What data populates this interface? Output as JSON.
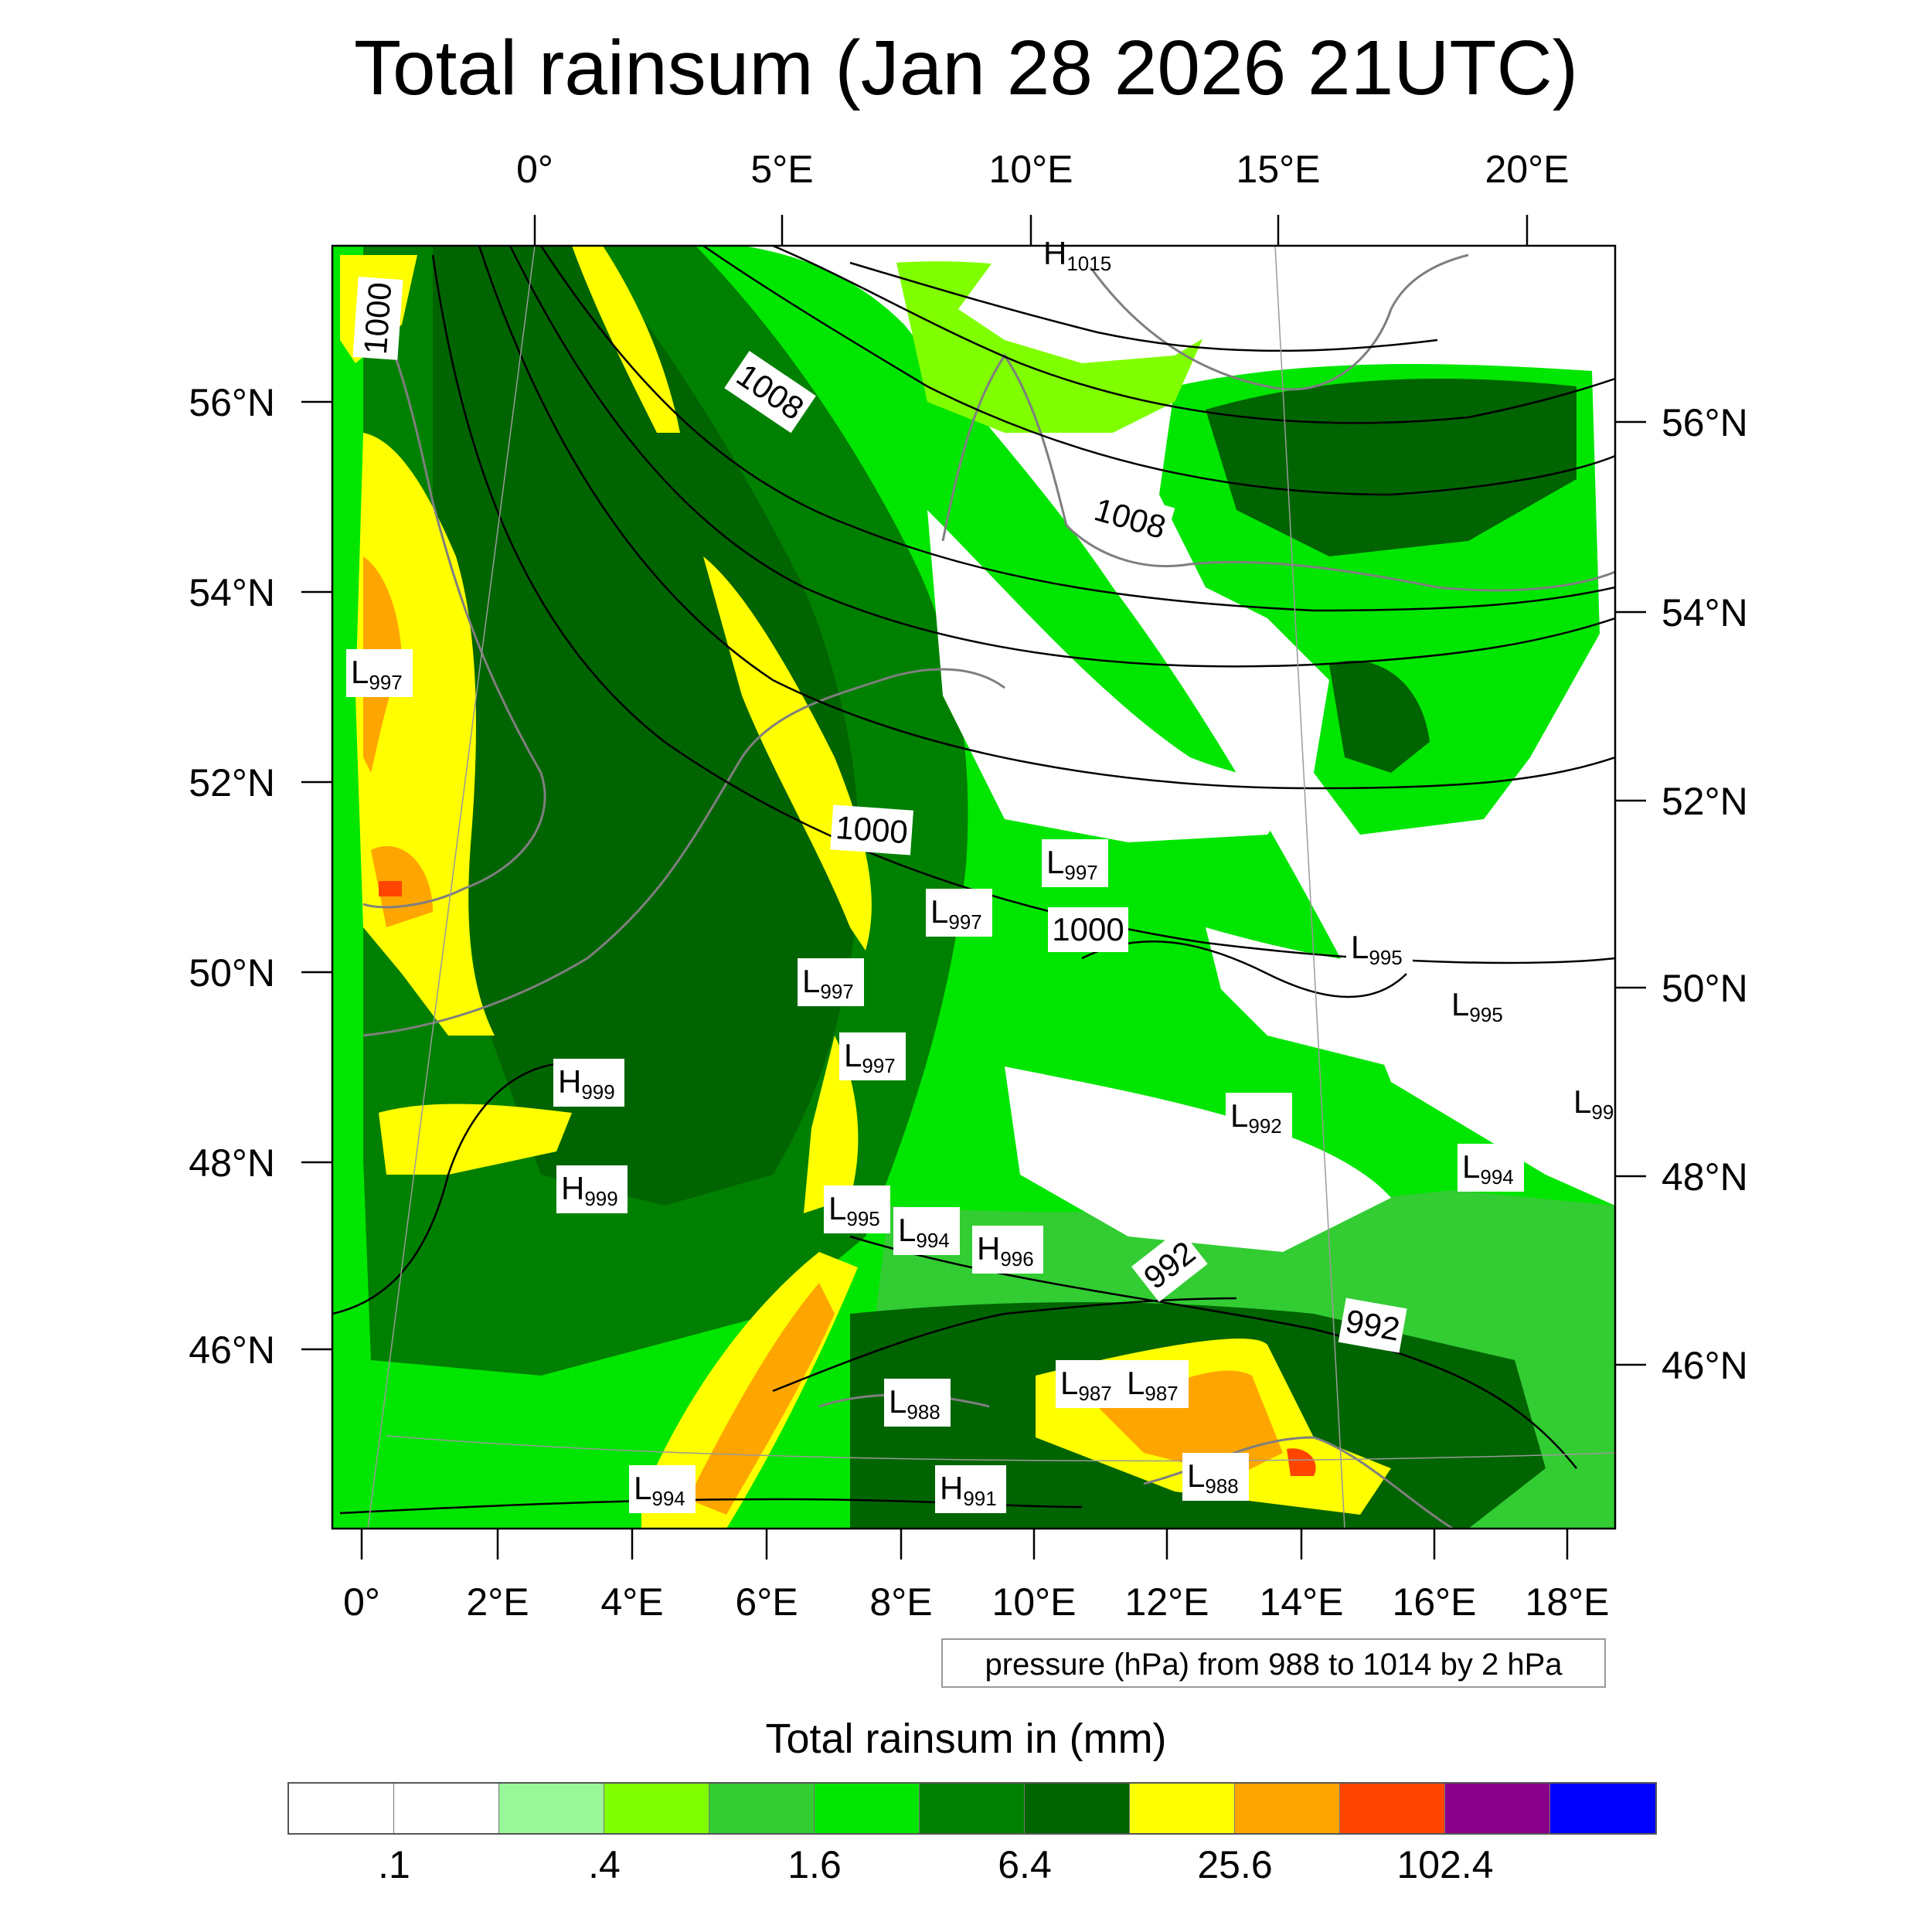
{
  "title": "Total rainsum (Jan 28 2026 21UTC)",
  "map": {
    "top_lon_labels": [
      "0°",
      "5°E",
      "10°E",
      "15°E",
      "20°E"
    ],
    "bottom_lon_labels": [
      "0°",
      "2°E",
      "4°E",
      "6°E",
      "8°E",
      "10°E",
      "12°E",
      "14°E",
      "16°E",
      "18°E"
    ],
    "left_lat_labels": [
      "56°N",
      "54°N",
      "52°N",
      "50°N",
      "48°N",
      "46°N"
    ],
    "right_lat_labels": [
      "56°N",
      "54°N",
      "52°N",
      "50°N",
      "48°N",
      "46°N"
    ],
    "isobar_labels": [
      "1000",
      "1008",
      "1008",
      "1000",
      "1000",
      "992",
      "992"
    ],
    "pressure_centers": [
      {
        "type": "H",
        "value": "1015"
      },
      {
        "type": "L",
        "value": "997"
      },
      {
        "type": "L",
        "value": "997"
      },
      {
        "type": "L",
        "value": "997"
      },
      {
        "type": "L",
        "value": "997"
      },
      {
        "type": "L",
        "value": "997"
      },
      {
        "type": "L",
        "value": "995"
      },
      {
        "type": "L",
        "value": "995"
      },
      {
        "type": "L",
        "value": "99"
      },
      {
        "type": "H",
        "value": "999"
      },
      {
        "type": "L",
        "value": "992"
      },
      {
        "type": "H",
        "value": "999"
      },
      {
        "type": "L",
        "value": "994"
      },
      {
        "type": "L",
        "value": "995"
      },
      {
        "type": "L",
        "value": "994"
      },
      {
        "type": "H",
        "value": "996"
      },
      {
        "type": "L",
        "value": "987"
      },
      {
        "type": "L",
        "value": "987"
      },
      {
        "type": "L",
        "value": "988"
      },
      {
        "type": "L",
        "value": "988"
      },
      {
        "type": "H",
        "value": "991"
      },
      {
        "type": "L",
        "value": "994"
      }
    ]
  },
  "pressure_note": "pressure (hPa) from 988 to 1014 by 2 hPa",
  "colorbar": {
    "title": "Total rainsum in (mm)",
    "colors": [
      "#ffffff",
      "#ffffff",
      "#99f799",
      "#80ff00",
      "#33cc33",
      "#00e600",
      "#008000",
      "#006400",
      "#ffff00",
      "#ffa500",
      "#ff4500",
      "#8b008b",
      "#0000ff"
    ],
    "labels": [
      ".1",
      ".4",
      "1.6",
      "6.4",
      "25.6",
      "102.4"
    ]
  },
  "colors": {
    "light_green": "#99f799",
    "lime": "#80ff00",
    "medium_green": "#33cc33",
    "bright_green": "#00e600",
    "green": "#008000",
    "dark_green": "#006400",
    "yellow": "#ffff00",
    "orange": "#ffa500",
    "red": "#ff4500"
  }
}
